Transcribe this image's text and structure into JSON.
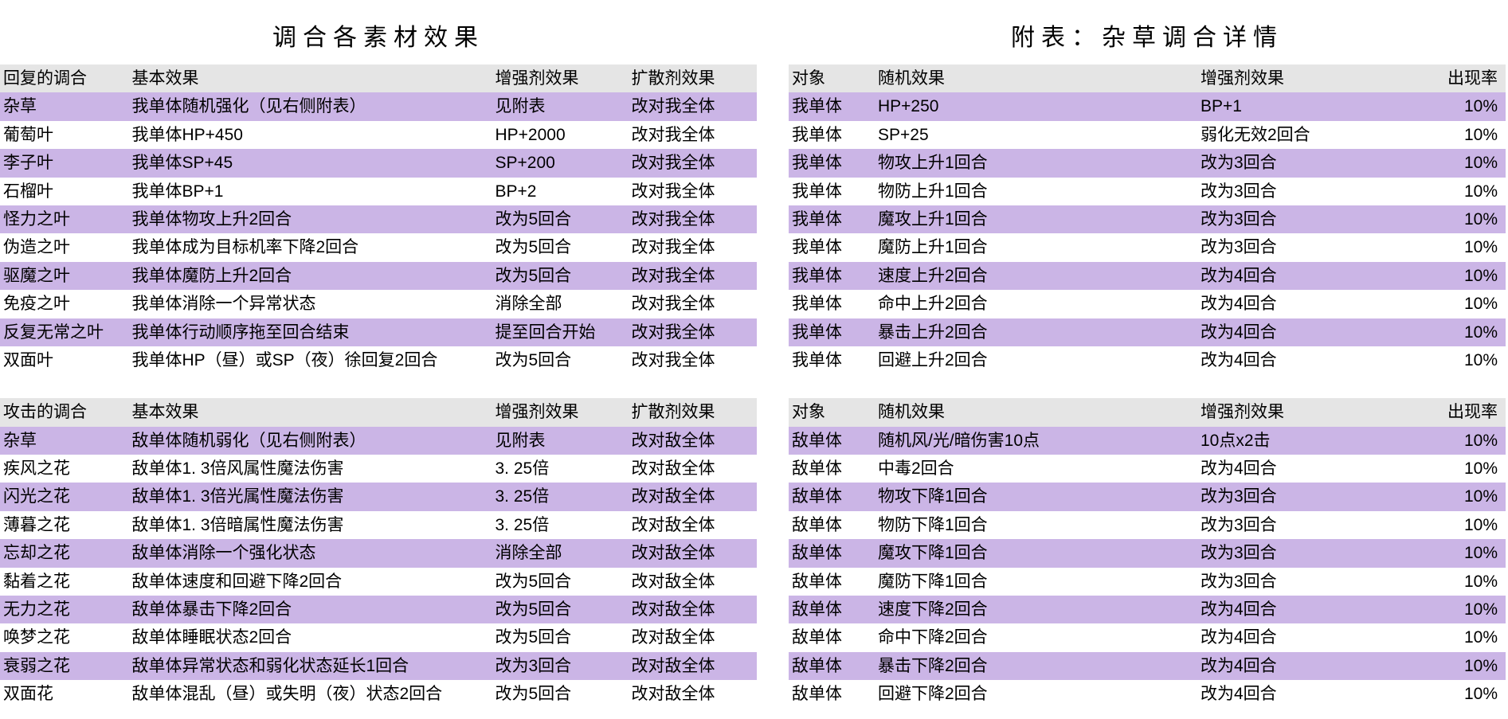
{
  "colors": {
    "header_bg": "#e5e5e5",
    "odd_row_bg": "#cbb5e6",
    "even_row_bg": "#ffffff",
    "text": "#000000"
  },
  "typography": {
    "title_fontsize": 30,
    "cell_fontsize": 21,
    "font_family": "Microsoft YaHei / SimSun"
  },
  "left": {
    "title": "调合各素材效果",
    "col_widths_pct": [
      17,
      48,
      18,
      17
    ],
    "tables": [
      {
        "headers": [
          "回复的调合",
          "基本效果",
          "增强剂效果",
          "扩散剂效果"
        ],
        "rows": [
          [
            "杂草",
            "我单体随机强化（见右侧附表）",
            "见附表",
            "改对我全体"
          ],
          [
            "葡萄叶",
            "我单体HP+450",
            "HP+2000",
            "改对我全体"
          ],
          [
            "李子叶",
            "我单体SP+45",
            "SP+200",
            "改对我全体"
          ],
          [
            "石榴叶",
            "我单体BP+1",
            "BP+2",
            "改对我全体"
          ],
          [
            "怪力之叶",
            "我单体物攻上升2回合",
            "改为5回合",
            "改对我全体"
          ],
          [
            "伪造之叶",
            "我单体成为目标机率下降2回合",
            "改为5回合",
            "改对我全体"
          ],
          [
            "驱魔之叶",
            "我单体魔防上升2回合",
            "改为5回合",
            "改对我全体"
          ],
          [
            "免疫之叶",
            "我单体消除一个异常状态",
            "消除全部",
            "改对我全体"
          ],
          [
            "反复无常之叶",
            "我单体行动顺序拖至回合结束",
            "提至回合开始",
            "改对我全体"
          ],
          [
            "双面叶",
            "我单体HP（昼）或SP（夜）徐回复2回合",
            "改为5回合",
            "改对我全体"
          ]
        ]
      },
      {
        "headers": [
          "攻击的调合",
          "基本效果",
          "增强剂效果",
          "扩散剂效果"
        ],
        "rows": [
          [
            "杂草",
            "敌单体随机弱化（见右侧附表）",
            "见附表",
            "改对敌全体"
          ],
          [
            "疾风之花",
            "敌单体1. 3倍风属性魔法伤害",
            "3. 25倍",
            "改对敌全体"
          ],
          [
            "闪光之花",
            "敌单体1. 3倍光属性魔法伤害",
            "3. 25倍",
            "改对敌全体"
          ],
          [
            "薄暮之花",
            "敌单体1. 3倍暗属性魔法伤害",
            "3. 25倍",
            "改对敌全体"
          ],
          [
            "忘却之花",
            "敌单体消除一个强化状态",
            "消除全部",
            "改对敌全体"
          ],
          [
            "黏着之花",
            "敌单体速度和回避下降2回合",
            "改为5回合",
            "改对敌全体"
          ],
          [
            "无力之花",
            "敌单体暴击下降2回合",
            "改为5回合",
            "改对敌全体"
          ],
          [
            "唤梦之花",
            "敌单体睡眠状态2回合",
            "改为5回合",
            "改对敌全体"
          ],
          [
            "衰弱之花",
            "敌单体异常状态和弱化状态延长1回合",
            "改为3回合",
            "改对敌全体"
          ],
          [
            "双面花",
            "敌单体混乱（昼）或失明（夜）状态2回合",
            "改为5回合",
            "改对敌全体"
          ]
        ]
      }
    ]
  },
  "right": {
    "title": "附表：杂草调合详情",
    "col_widths_pct": [
      12,
      45,
      28,
      15
    ],
    "numeric_col": 3,
    "tables": [
      {
        "headers": [
          "对象",
          "随机效果",
          "增强剂效果",
          "出现率"
        ],
        "rows": [
          [
            "我单体",
            "HP+250",
            "BP+1",
            "10%"
          ],
          [
            "我单体",
            "SP+25",
            "弱化无效2回合",
            "10%"
          ],
          [
            "我单体",
            "物攻上升1回合",
            "改为3回合",
            "10%"
          ],
          [
            "我单体",
            "物防上升1回合",
            "改为3回合",
            "10%"
          ],
          [
            "我单体",
            "魔攻上升1回合",
            "改为3回合",
            "10%"
          ],
          [
            "我单体",
            "魔防上升1回合",
            "改为3回合",
            "10%"
          ],
          [
            "我单体",
            "速度上升2回合",
            "改为4回合",
            "10%"
          ],
          [
            "我单体",
            "命中上升2回合",
            "改为4回合",
            "10%"
          ],
          [
            "我单体",
            "暴击上升2回合",
            "改为4回合",
            "10%"
          ],
          [
            "我单体",
            "回避上升2回合",
            "改为4回合",
            "10%"
          ]
        ]
      },
      {
        "headers": [
          "对象",
          "随机效果",
          "增强剂效果",
          "出现率"
        ],
        "rows": [
          [
            "敌单体",
            "随机风/光/暗伤害10点",
            "10点x2击",
            "10%"
          ],
          [
            "敌单体",
            "中毒2回合",
            "改为4回合",
            "10%"
          ],
          [
            "敌单体",
            "物攻下降1回合",
            "改为3回合",
            "10%"
          ],
          [
            "敌单体",
            "物防下降1回合",
            "改为3回合",
            "10%"
          ],
          [
            "敌单体",
            "魔攻下降1回合",
            "改为3回合",
            "10%"
          ],
          [
            "敌单体",
            "魔防下降1回合",
            "改为3回合",
            "10%"
          ],
          [
            "敌单体",
            "速度下降2回合",
            "改为4回合",
            "10%"
          ],
          [
            "敌单体",
            "命中下降2回合",
            "改为4回合",
            "10%"
          ],
          [
            "敌单体",
            "暴击下降2回合",
            "改为4回合",
            "10%"
          ],
          [
            "敌单体",
            "回避下降2回合",
            "改为4回合",
            "10%"
          ]
        ]
      }
    ]
  }
}
